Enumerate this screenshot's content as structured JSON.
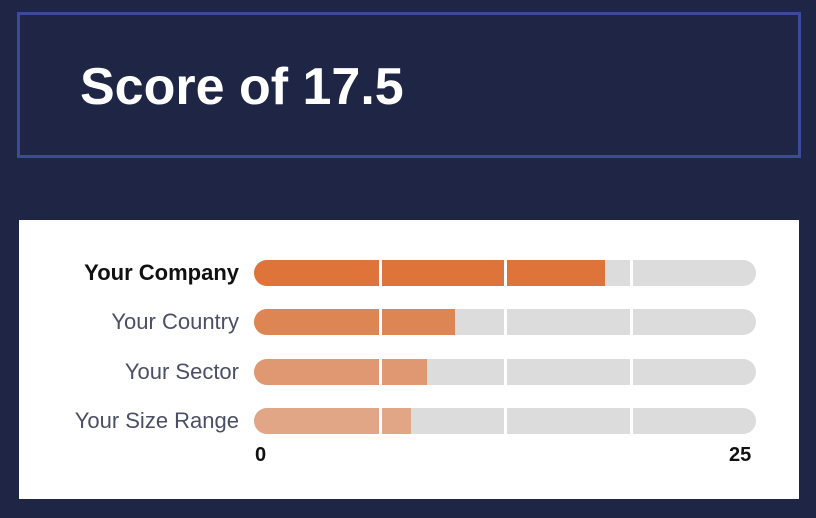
{
  "header": {
    "title": "Score of 17.5"
  },
  "chart_data": {
    "type": "bar",
    "orientation": "horizontal",
    "categories": [
      "Your Company",
      "Your Country",
      "Your Sector",
      "Your Size Range"
    ],
    "values": [
      17.5,
      10,
      8.6,
      7.8
    ],
    "xlim": [
      0,
      25
    ],
    "tick_labels": [
      "0",
      "25"
    ],
    "gridlines": [
      6.25,
      12.5,
      18.75
    ],
    "colors": [
      "#df743a",
      "#de8554",
      "#df9872",
      "#e0a685"
    ],
    "track_color": "#dcdcdc",
    "highlight": "Your Company"
  }
}
